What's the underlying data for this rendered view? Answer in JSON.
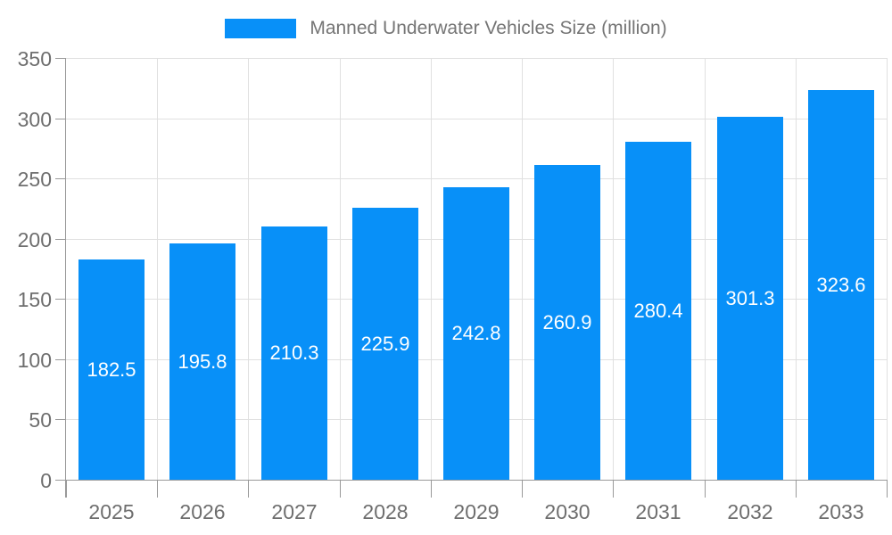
{
  "legend": {
    "label": "Manned Underwater Vehicles Size (million)"
  },
  "chart_data": {
    "type": "bar",
    "title": "Manned Underwater Vehicles Size (million)",
    "categories": [
      "2025",
      "2026",
      "2027",
      "2028",
      "2029",
      "2030",
      "2031",
      "2032",
      "2033"
    ],
    "values": [
      182.5,
      195.8,
      210.3,
      225.9,
      242.8,
      260.9,
      280.4,
      301.3,
      323.6
    ],
    "xlabel": "",
    "ylabel": "",
    "ylim": [
      0,
      350
    ],
    "yticks": [
      0,
      50,
      100,
      150,
      200,
      250,
      300,
      350
    ],
    "grid": true,
    "legend_position": "top",
    "value_label_position": "inside-center",
    "bar_color": "#0890f8"
  },
  "colors": {
    "bar": "#0890f8",
    "grid_line": "#e0e0e0",
    "axis_line": "#999999",
    "axis_label": "#6e6e6e",
    "legend_text": "#757575",
    "value_label": "#ffffff",
    "background": "#ffffff"
  }
}
